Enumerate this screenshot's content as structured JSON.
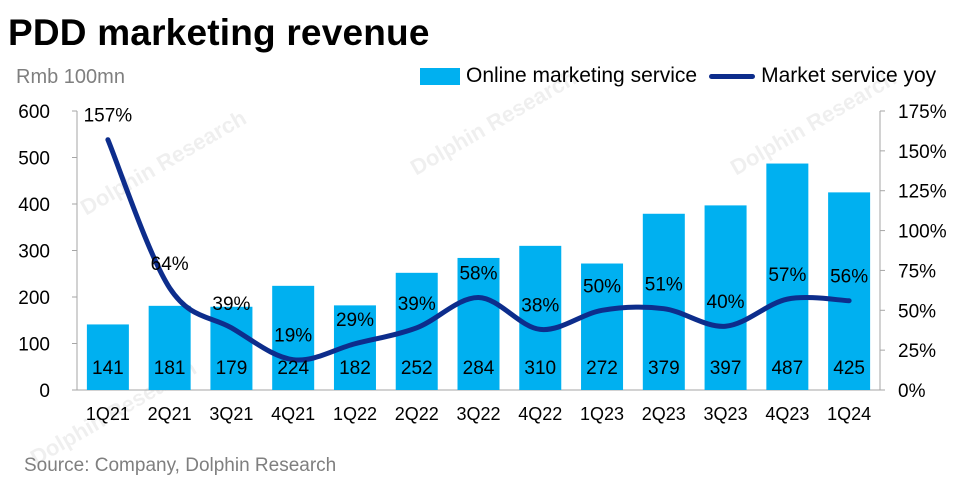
{
  "title": "PDD marketing revenue",
  "unit_label": "Rmb 100mn",
  "source": "Source: Company, Dolphin Research",
  "watermark": "Dolphin Research",
  "chart_data": {
    "type": "bar",
    "categories": [
      "1Q21",
      "2Q21",
      "3Q21",
      "4Q21",
      "1Q22",
      "2Q22",
      "3Q22",
      "4Q22",
      "1Q23",
      "2Q23",
      "3Q23",
      "4Q23",
      "1Q24"
    ],
    "series": [
      {
        "name": "Online marketing service",
        "type": "bar",
        "axis": "left",
        "color": "#00b0f0",
        "values": [
          141,
          181,
          179,
          224,
          182,
          252,
          284,
          310,
          272,
          379,
          397,
          487,
          425
        ],
        "labels": [
          "141",
          "181",
          "179",
          "224",
          "182",
          "252",
          "284",
          "310",
          "272",
          "379",
          "397",
          "487",
          "425"
        ]
      },
      {
        "name": "Market service yoy",
        "type": "line",
        "axis": "right",
        "color": "#0d2d8c",
        "values": [
          157,
          64,
          39,
          19,
          29,
          39,
          58,
          38,
          50,
          51,
          40,
          57,
          56
        ],
        "labels": [
          "157%",
          "64%",
          "39%",
          "19%",
          "29%",
          "39%",
          "58%",
          "38%",
          "50%",
          "51%",
          "40%",
          "57%",
          "56%"
        ]
      }
    ],
    "y_left": {
      "min": 0,
      "max": 600,
      "ticks": [
        "0",
        "100",
        "200",
        "300",
        "400",
        "500",
        "600"
      ]
    },
    "y_right": {
      "min": 0,
      "max": 175,
      "ticks": [
        "0%",
        "25%",
        "50%",
        "75%",
        "100%",
        "125%",
        "150%",
        "175%"
      ]
    },
    "grid": false,
    "legend_position": "top-right"
  }
}
